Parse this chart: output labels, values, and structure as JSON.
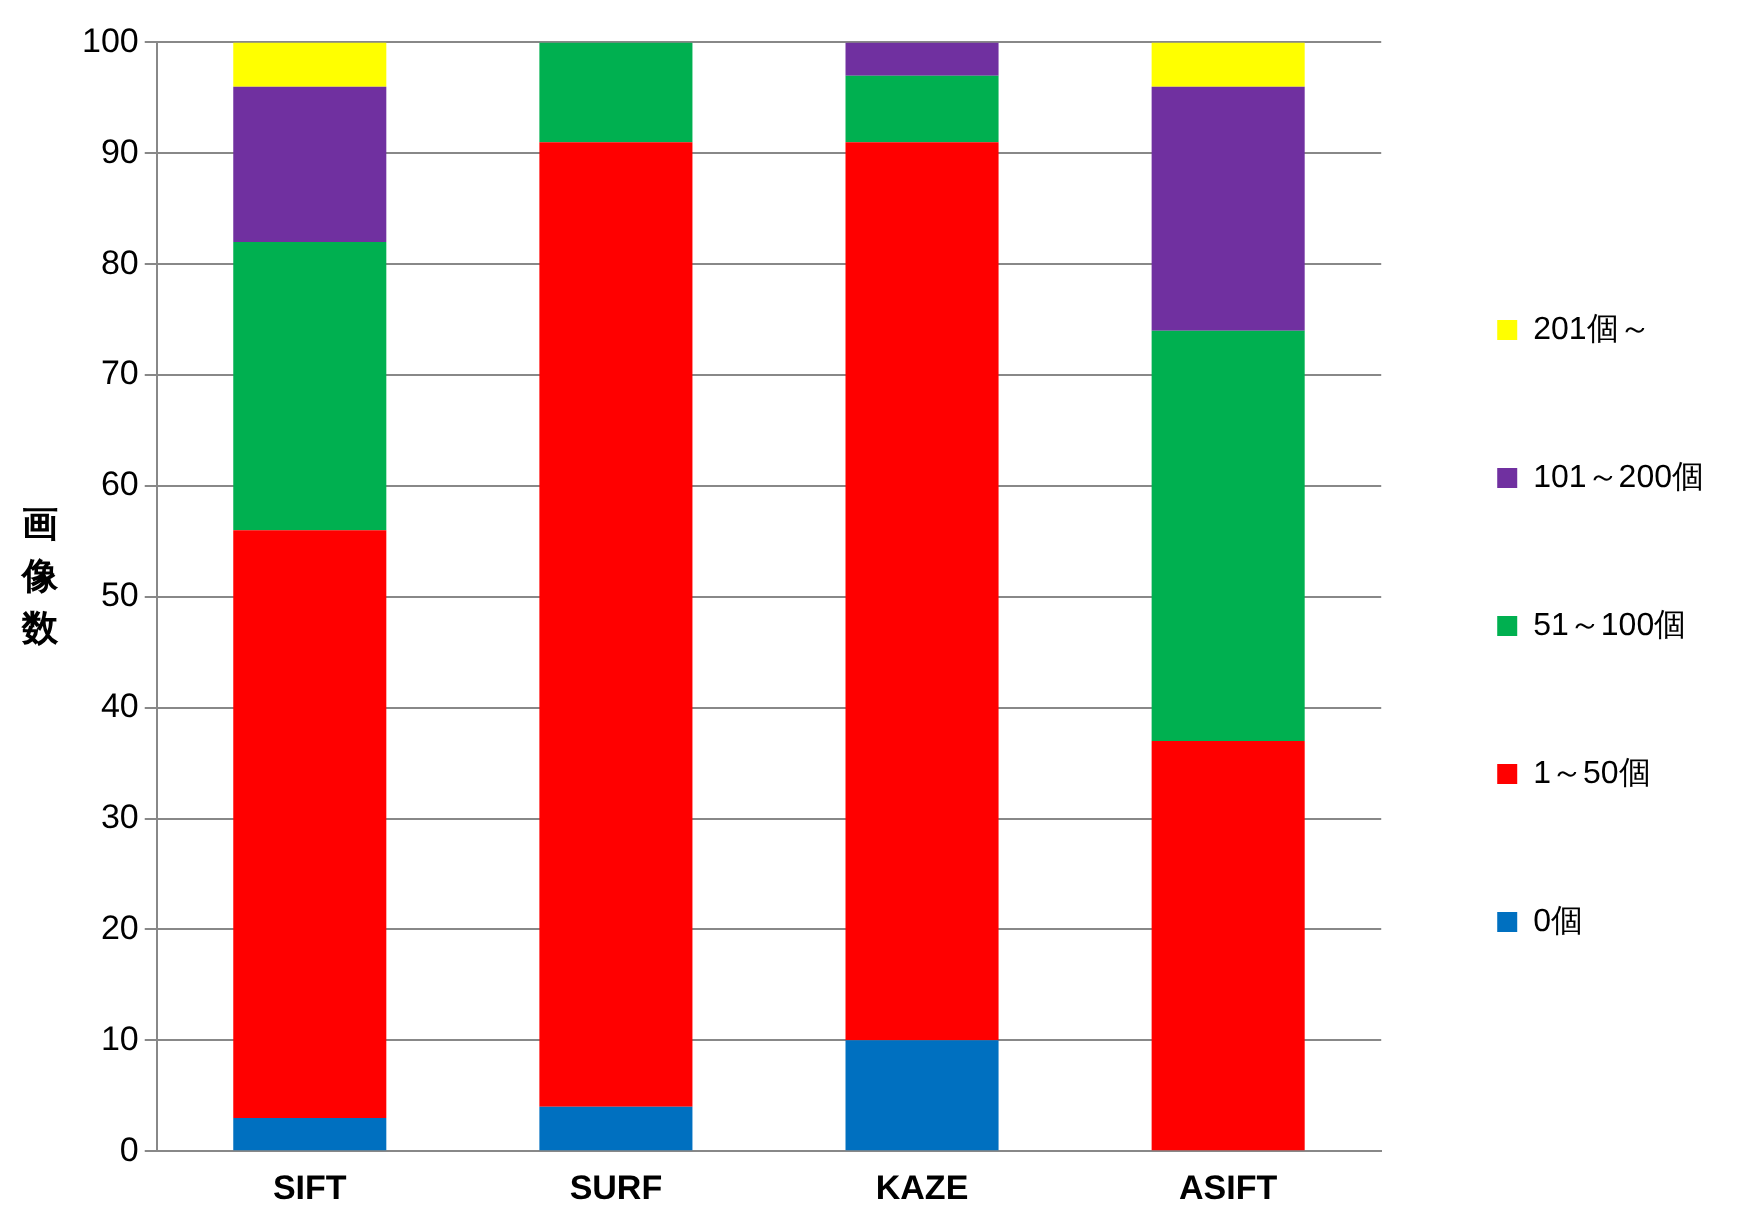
{
  "chart_data": {
    "type": "bar",
    "stacked": true,
    "ylabel": "画像数",
    "categories": [
      "SIFT",
      "SURF",
      "KAZE",
      "ASIFT"
    ],
    "series": [
      {
        "name": "0個",
        "color": "#0070c0",
        "values": [
          3,
          4,
          10,
          0
        ]
      },
      {
        "name": "1～50個",
        "color": "#ff0000",
        "values": [
          53,
          87,
          81,
          37
        ]
      },
      {
        "name": "51～100個",
        "color": "#00b050",
        "values": [
          26,
          9,
          6,
          37
        ]
      },
      {
        "name": "101～200個",
        "color": "#7030a0",
        "values": [
          14,
          0,
          3,
          22
        ]
      },
      {
        "name": "201個～",
        "color": "#ffff00",
        "values": [
          4,
          0,
          0,
          4
        ]
      }
    ],
    "ylim": [
      0,
      100
    ],
    "yticks": [
      0,
      10,
      20,
      30,
      40,
      50,
      60,
      70,
      80,
      90,
      100
    ],
    "grid": "y",
    "legend": "right"
  }
}
